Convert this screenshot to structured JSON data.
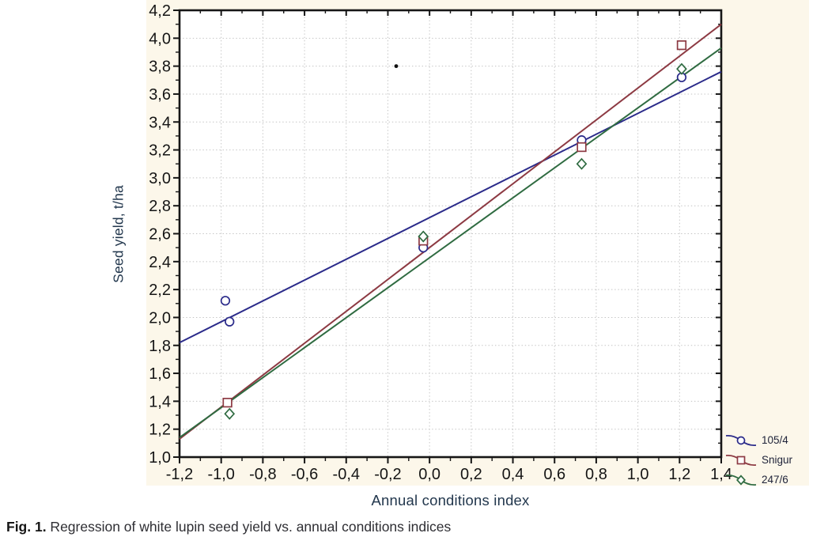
{
  "figure": {
    "caption_prefix": "Fig. 1.",
    "caption_text": " Regression of white lupin seed yield vs. annual conditions indices"
  },
  "chart_data": {
    "type": "scatter",
    "title": "",
    "xlabel": "Annual conditions index",
    "ylabel": "Seed yield, t/ha",
    "xlim": [
      -1.2,
      1.4
    ],
    "ylim": [
      1.0,
      4.2
    ],
    "x_major_step": 0.2,
    "x_minor_step": 0.1,
    "y_major_step": 0.2,
    "y_minor_step": 0.1,
    "decimal_separator": ",",
    "grid": "dotted",
    "legend_position": "bottom-right-outside",
    "x_tick_labels": [
      "-1,2",
      "-1,0",
      "-0,8",
      "-0,6",
      "-0,4",
      "-0,2",
      "0,0",
      "0,2",
      "0,4",
      "0,6",
      "0,8",
      "1,0",
      "1,2",
      "1,4"
    ],
    "y_tick_labels": [
      "1,0",
      "1,2",
      "1,4",
      "1,6",
      "1,8",
      "2,0",
      "2,2",
      "2,4",
      "2,6",
      "2,8",
      "3,0",
      "3,2",
      "3,4",
      "3,6",
      "3,8",
      "4,0",
      "4,2"
    ],
    "series": [
      {
        "name": "105/4",
        "marker": "circle",
        "color": "#2b2b8a",
        "points": [
          [
            -0.98,
            2.12
          ],
          [
            -0.96,
            1.97
          ],
          [
            -0.03,
            2.5
          ],
          [
            0.73,
            3.27
          ],
          [
            1.21,
            3.72
          ]
        ],
        "regression": {
          "x": [
            -1.2,
            1.4
          ],
          "y": [
            1.82,
            3.76
          ]
        }
      },
      {
        "name": "Snigur",
        "marker": "square",
        "color": "#8d3a43",
        "points": [
          [
            -0.97,
            1.39
          ],
          [
            -0.03,
            2.55
          ],
          [
            0.73,
            3.22
          ],
          [
            1.21,
            3.95
          ]
        ],
        "regression": {
          "x": [
            -1.2,
            1.4
          ],
          "y": [
            1.13,
            4.1
          ]
        }
      },
      {
        "name": "247/6",
        "marker": "diamond",
        "color": "#2f6b41",
        "points": [
          [
            -0.96,
            1.31
          ],
          [
            -0.03,
            2.58
          ],
          [
            0.73,
            3.1
          ],
          [
            1.21,
            3.78
          ]
        ],
        "regression": {
          "x": [
            -1.2,
            1.4
          ],
          "y": [
            1.14,
            3.93
          ]
        }
      }
    ],
    "artifacts": [
      {
        "type": "stray-dot",
        "x": -0.16,
        "y": 3.8
      }
    ]
  },
  "colors": {
    "page_background": "#ffffff",
    "panel_background": "#fcf7ea",
    "plot_background": "#ffffff",
    "axis": "#161616",
    "grid": "#c3c3c3",
    "tick_label": "#151515",
    "axis_title": "#22374d",
    "legend_text": "#20243a",
    "caption": "#2e2e33"
  }
}
